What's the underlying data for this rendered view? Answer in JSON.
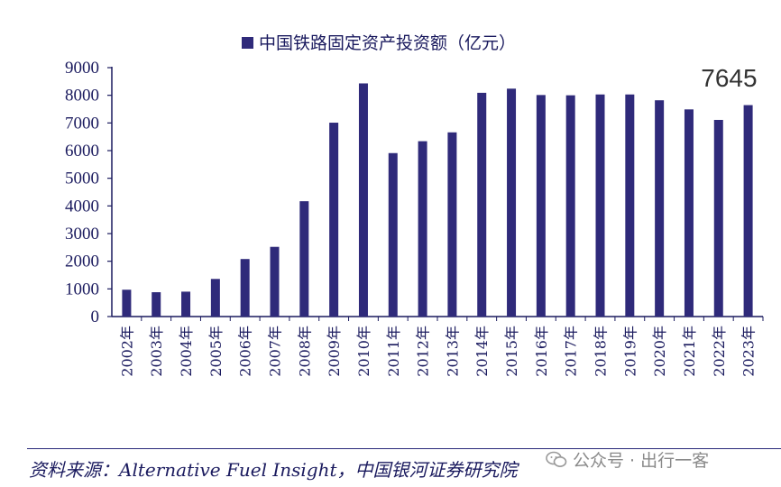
{
  "chart_data": {
    "type": "bar",
    "title": "",
    "legend": {
      "label": "中国铁路固定资产投资额（亿元）",
      "position": "top"
    },
    "categories": [
      "2002年",
      "2003年",
      "2004年",
      "2005年",
      "2006年",
      "2007年",
      "2008年",
      "2009年",
      "2010年",
      "2011年",
      "2012年",
      "2013年",
      "2014年",
      "2015年",
      "2016年",
      "2017年",
      "2018年",
      "2019年",
      "2020年",
      "2021年",
      "2022年",
      "2023年"
    ],
    "values": [
      970,
      880,
      900,
      1360,
      2080,
      2520,
      4170,
      7010,
      8430,
      5910,
      6340,
      6660,
      8090,
      8240,
      8010,
      8000,
      8030,
      8030,
      7820,
      7490,
      7110,
      7645
    ],
    "ylim": [
      0,
      9000
    ],
    "yticks": [
      "0",
      "1000",
      "2000",
      "3000",
      "4000",
      "5000",
      "6000",
      "7000",
      "8000",
      "9000"
    ],
    "annotation": {
      "text": "7645",
      "category": "2023年"
    },
    "bar_color": "#2f2a7a",
    "grid": false
  },
  "footer": {
    "source": "资料来源：Alternative Fuel Insight，中国银河证券研究院",
    "watermark": "公众号 · 出行一客",
    "watermark_icon": "wechat-icon"
  }
}
